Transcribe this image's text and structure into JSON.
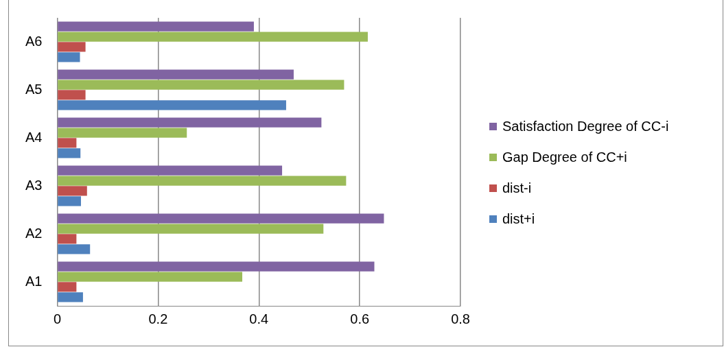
{
  "chart_data": {
    "type": "bar",
    "orientation": "horizontal",
    "categories": [
      "A6",
      "A5",
      "A4",
      "A3",
      "A2",
      "A1"
    ],
    "series": [
      {
        "name": "Satisfaction Degree of CC-i",
        "color": "#8064a2",
        "values": [
          0.39,
          0.469,
          0.524,
          0.446,
          0.648,
          0.629
        ]
      },
      {
        "name": "Gap Degree of CC+i",
        "color": "#9bbb59",
        "values": [
          0.616,
          0.569,
          0.257,
          0.573,
          0.528,
          0.367
        ]
      },
      {
        "name": "dist-i",
        "color": "#c0504d",
        "values": [
          0.056,
          0.056,
          0.038,
          0.059,
          0.038,
          0.038
        ]
      },
      {
        "name": "dist+i",
        "color": "#4f81bd",
        "values": [
          0.045,
          0.454,
          0.046,
          0.047,
          0.065,
          0.051
        ]
      }
    ],
    "xlim": [
      0,
      0.8
    ],
    "xticks": [
      0,
      0.2,
      0.4,
      0.6,
      0.8
    ],
    "grid": "x",
    "legend": "right"
  }
}
